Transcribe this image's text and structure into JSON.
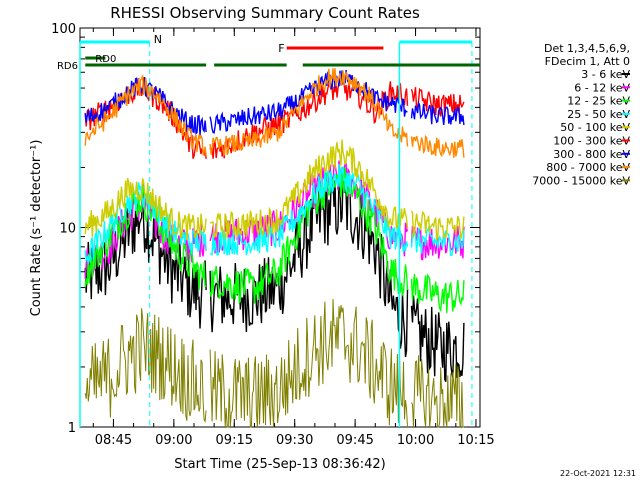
{
  "chart_data": {
    "type": "line",
    "title": "RHESSI Observing Summary Count Rates",
    "xlabel": "Start Time (25-Sep-13 08:36:42)",
    "ylabel": "Count Rate (s⁻¹ detector⁻¹)",
    "yscale": "log",
    "ylim": [
      1,
      100
    ],
    "xlim": [
      "08:36:42",
      "10:16:00"
    ],
    "x_ticks": [
      "08:45",
      "09:00",
      "09:15",
      "09:30",
      "09:45",
      "10:00",
      "10:15"
    ],
    "y_ticks": [
      "1",
      "10",
      "100"
    ],
    "grid": false,
    "legend_position": "right",
    "legend_header": [
      "Det 1,3,4,5,6,9,",
      "FDecim 1, Att 0"
    ],
    "series": [
      {
        "name": "3 - 6 keV",
        "color": "#000000",
        "x": [
          "08:38",
          "08:44",
          "08:48",
          "08:52",
          "08:56",
          "09:00",
          "09:04",
          "09:08",
          "09:20",
          "09:26",
          "09:30",
          "09:34",
          "09:38",
          "09:42",
          "09:46",
          "09:50",
          "09:54",
          "10:00",
          "10:06",
          "10:12"
        ],
        "values": [
          5.5,
          6.5,
          9,
          12,
          8,
          6,
          5,
          4.5,
          4.5,
          5,
          7,
          10,
          12,
          13,
          11,
          8,
          4,
          3,
          2.5,
          2.5
        ]
      },
      {
        "name": "6 - 12 keV",
        "color": "#ff00ff",
        "x": [
          "08:38",
          "08:44",
          "08:48",
          "08:52",
          "08:56",
          "09:00",
          "09:04",
          "09:08",
          "09:20",
          "09:26",
          "09:30",
          "09:34",
          "09:38",
          "09:42",
          "09:46",
          "09:50",
          "09:54",
          "10:00",
          "10:06",
          "10:12"
        ],
        "values": [
          6.5,
          8,
          11,
          13,
          10,
          8.5,
          8,
          9,
          9.5,
          10,
          12,
          15,
          17,
          18,
          16,
          12,
          9,
          8.5,
          8.5,
          8.5
        ]
      },
      {
        "name": "12 - 25 keV",
        "color": "#00ff00",
        "x": [
          "08:38",
          "08:44",
          "08:48",
          "08:52",
          "08:56",
          "09:00",
          "09:04",
          "09:08",
          "09:20",
          "09:26",
          "09:30",
          "09:34",
          "09:38",
          "09:42",
          "09:46",
          "09:50",
          "09:54",
          "10:00",
          "10:06",
          "10:12"
        ],
        "values": [
          6,
          9,
          12,
          14,
          11,
          8,
          6.5,
          5.5,
          5,
          6,
          9,
          13,
          16,
          17,
          14,
          10,
          6,
          5,
          4.5,
          4.5
        ]
      },
      {
        "name": "25 - 50 keV",
        "color": "#00ffff",
        "x": [
          "08:38",
          "08:44",
          "08:48",
          "08:52",
          "08:56",
          "09:00",
          "09:04",
          "09:08",
          "09:20",
          "09:26",
          "09:30",
          "09:34",
          "09:38",
          "09:42",
          "09:46",
          "09:50",
          "09:54",
          "10:00",
          "10:06",
          "10:12"
        ],
        "values": [
          7,
          10,
          13,
          15,
          12,
          9.5,
          8.5,
          8.5,
          8.5,
          9,
          11,
          14,
          17,
          18,
          16,
          12,
          9,
          8.5,
          8.5,
          8.5
        ]
      },
      {
        "name": "50 - 100 keV",
        "color": "#cccc00",
        "x": [
          "08:38",
          "08:44",
          "08:48",
          "08:52",
          "08:56",
          "09:00",
          "09:04",
          "09:08",
          "09:20",
          "09:26",
          "09:30",
          "09:34",
          "09:38",
          "09:42",
          "09:46",
          "09:50",
          "09:54",
          "10:00",
          "10:06",
          "10:12"
        ],
        "values": [
          10,
          12,
          15,
          16,
          13,
          10.5,
          10,
          10,
          10.5,
          11,
          14,
          18,
          22,
          24,
          20,
          15,
          11,
          10.5,
          10,
          10
        ]
      },
      {
        "name": "100 - 300 keV",
        "color": "#ff0000",
        "x": [
          "08:38",
          "08:44",
          "08:48",
          "08:52",
          "08:56",
          "09:00",
          "09:04",
          "09:08",
          "09:20",
          "09:26",
          "09:30",
          "09:34",
          "09:38",
          "09:42",
          "09:46",
          "09:50",
          "09:54",
          "10:00",
          "10:06",
          "10:12"
        ],
        "values": [
          34,
          40,
          46,
          50,
          44,
          36,
          26,
          23,
          30,
          33,
          36,
          42,
          48,
          50,
          46,
          38,
          48,
          44,
          41,
          41
        ]
      },
      {
        "name": "300 - 800 keV",
        "color": "#0000ff",
        "x": [
          "08:38",
          "08:44",
          "08:48",
          "08:52",
          "08:56",
          "09:00",
          "09:04",
          "09:08",
          "09:20",
          "09:26",
          "09:30",
          "09:34",
          "09:38",
          "09:42",
          "09:46",
          "09:50",
          "09:54",
          "10:00",
          "10:06",
          "10:12"
        ],
        "values": [
          35,
          40,
          47,
          52,
          46,
          38,
          33,
          32,
          36,
          38,
          42,
          48,
          54,
          56,
          52,
          44,
          42,
          38,
          36,
          36
        ]
      },
      {
        "name": "800 - 7000 keV",
        "color": "#ff8800",
        "x": [
          "08:38",
          "08:44",
          "08:48",
          "08:52",
          "08:56",
          "09:00",
          "09:04",
          "09:08",
          "09:20",
          "09:26",
          "09:30",
          "09:34",
          "09:38",
          "09:42",
          "09:46",
          "09:50",
          "09:54",
          "10:00",
          "10:06",
          "10:12"
        ],
        "values": [
          28,
          36,
          45,
          52,
          46,
          36,
          28,
          25,
          27,
          30,
          38,
          48,
          56,
          58,
          52,
          42,
          30,
          27,
          25,
          25
        ]
      },
      {
        "name": "7000 - 15000 keV",
        "color": "#808000",
        "x": [
          "08:38",
          "08:44",
          "08:48",
          "08:52",
          "08:56",
          "09:00",
          "09:04",
          "09:08",
          "09:20",
          "09:26",
          "09:30",
          "09:34",
          "09:38",
          "09:42",
          "09:46",
          "09:50",
          "09:54",
          "10:00",
          "10:06",
          "10:12"
        ],
        "values": [
          1.5,
          1.8,
          2.2,
          2.5,
          2.3,
          2.0,
          1.7,
          1.5,
          1.4,
          1.5,
          1.9,
          2.4,
          2.7,
          2.8,
          2.5,
          2.0,
          1.6,
          1.4,
          1.3,
          1.3
        ]
      }
    ],
    "annotations": [
      {
        "text": "RD0",
        "color": "#006400"
      },
      {
        "text": "RD6",
        "color": "#006400"
      },
      {
        "text": "N",
        "color": "#00ffff"
      },
      {
        "text": "F",
        "color": "#ff0000"
      }
    ],
    "footer": "22-Oct-2021 12:31"
  }
}
